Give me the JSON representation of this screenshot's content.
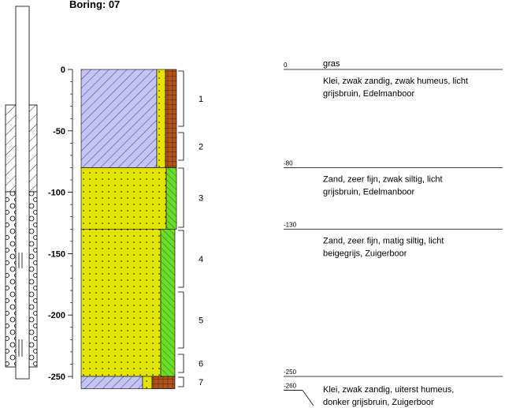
{
  "title": "Boring:   07",
  "depth_axis": {
    "ticks": [
      0,
      -50,
      -100,
      -150,
      -200,
      -250
    ]
  },
  "samples": [
    "1",
    "2",
    "3",
    "4",
    "5",
    "6",
    "7"
  ],
  "layers": [
    {
      "top": 0,
      "note": "gras",
      "description": [
        "Klei, zwak zandig, zwak humeus, licht",
        "grijsbruin, Edelmanboor"
      ]
    },
    {
      "top": -80,
      "description": [
        "Zand, zeer fijn, zwak siltig, licht",
        "grijsbruin, Edelmanboor"
      ]
    },
    {
      "top": -130,
      "description": [
        "Zand, zeer fijn, matig siltig, licht",
        "beigegrijs, Zuigerboor"
      ]
    },
    {
      "top": -250,
      "bottom": -260,
      "description": [
        "Klei, zwak zandig, uiterst humeus,",
        "donker grijsbruin, Zuigerboor"
      ]
    }
  ]
}
